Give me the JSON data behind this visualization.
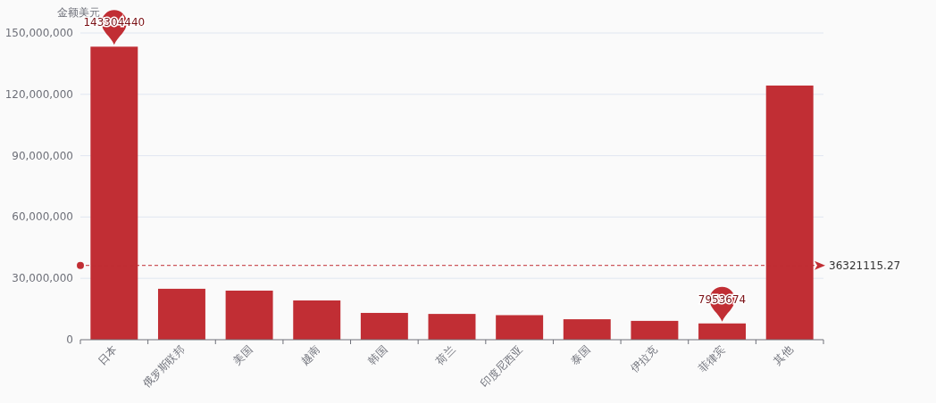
{
  "chart_data": {
    "type": "bar",
    "ylabel": "金额美元",
    "categories": [
      "日本",
      "俄罗斯联邦",
      "美国",
      "越南",
      "韩国",
      "荷兰",
      "印度尼西亚",
      "泰国",
      "伊拉克",
      "菲律宾",
      "其他"
    ],
    "values": [
      143304440,
      24900000,
      24000000,
      19200000,
      13100000,
      12600000,
      12000000,
      10000000,
      9200000,
      7953674,
      124300000
    ],
    "color": "#c12e34",
    "ylim": [
      0,
      150000000
    ],
    "yticks": [
      {
        "value": 0,
        "label": "0"
      },
      {
        "value": 30000000,
        "label": "30,000,000"
      },
      {
        "value": 60000000,
        "label": "60,000,000"
      },
      {
        "value": 90000000,
        "label": "90,000,000"
      },
      {
        "value": 120000000,
        "label": "120,000,000"
      },
      {
        "value": 150000000,
        "label": "150,000,000"
      }
    ],
    "grid": "y",
    "ref_lines": [
      {
        "axis": "y",
        "value": 36321115.27,
        "label": "36321115.27",
        "color": "#c12e34",
        "line_style": "dashed"
      }
    ],
    "annotations": [
      {
        "text": "143304440",
        "x": "日本",
        "y": 143304440
      },
      {
        "text": "7953674",
        "x": "菲律宾",
        "y": 7953674
      }
    ]
  }
}
